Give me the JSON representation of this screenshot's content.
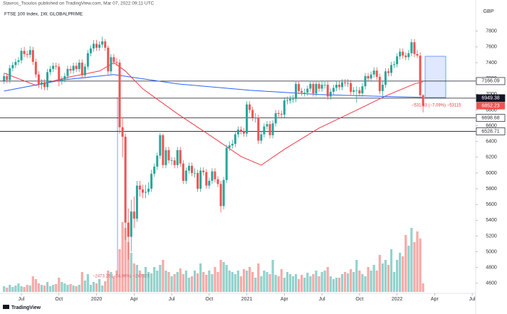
{
  "chart_data": {
    "type": "candlestick",
    "header": "Stavros_Tsoulos published on TradingView.com, Mar 07, 2022 09:11 UTC",
    "title": "FTSE 100 Index, 1W, GLOBALPRIME",
    "currency": "GBP",
    "logo": "TradingView",
    "up_color": "#26a69a",
    "down_color": "#ef5350",
    "open": [
      7170,
      7230,
      7180,
      7330,
      7370,
      7410,
      7430,
      7550,
      7510,
      7500,
      7560,
      7410,
      7250,
      7120,
      7150,
      7090,
      7280,
      7320,
      7360,
      7350,
      7160,
      7190,
      7230,
      7320,
      7300,
      7360,
      7320,
      7400,
      7240,
      7350,
      7520,
      7580,
      7640,
      7590,
      7630,
      7670,
      7590,
      7290,
      7470,
      7410,
      7400,
      6580,
      6460,
      5370,
      5190,
      5510,
      5420,
      5840,
      5790,
      5750,
      5760,
      5800,
      5990,
      6080,
      6220,
      6480,
      6100,
      6290,
      6160,
      6160,
      6100,
      6290,
      6120,
      5900,
      6030,
      6090,
      6000,
      6000,
      5800,
      6030,
      6010,
      5840,
      5900,
      6020,
      5920,
      5860,
      5580,
      5910,
      6320,
      6350,
      6370,
      6490,
      6550,
      6530,
      6500,
      6870,
      6800,
      6700,
      6700,
      6410,
      6490,
      6590,
      6620,
      6480,
      6630,
      6760,
      6750,
      6740,
      6920,
      6920,
      6940,
      6940,
      7130,
      7040,
      7020,
      7020,
      7070,
      7130,
      7010,
      7130,
      7070,
      7120,
      7120,
      6970,
      7030,
      7080,
      7120,
      7090,
      7150,
      7140,
      7140,
      7030,
      7050,
      7050,
      7010,
      7100,
      7230,
      7200,
      7250,
      7300,
      7220,
      7040,
      7120,
      7290,
      7270,
      7370,
      7380,
      7480,
      7540,
      7490,
      7470,
      7520,
      7660,
      7510,
      7490,
      6987
    ],
    "high": [
      7270,
      7270,
      7370,
      7410,
      7450,
      7470,
      7590,
      7600,
      7550,
      7610,
      7600,
      7450,
      7290,
      7190,
      7190,
      7320,
      7360,
      7400,
      7400,
      7390,
      7230,
      7270,
      7360,
      7360,
      7400,
      7400,
      7440,
      7440,
      7390,
      7560,
      7620,
      7690,
      7690,
      7670,
      7730,
      7700,
      7620,
      7510,
      7510,
      7460,
      7440,
      6700,
      6500,
      5550,
      5660,
      5700,
      5900,
      5900,
      5850,
      5850,
      5880,
      6040,
      6120,
      6260,
      6510,
      6500,
      6330,
      6330,
      6200,
      6200,
      6330,
      6330,
      6160,
      6070,
      6130,
      6130,
      6060,
      6040,
      6070,
      6070,
      6050,
      5940,
      6060,
      6060,
      5960,
      5900,
      5950,
      6360,
      6400,
      6420,
      6530,
      6590,
      6590,
      6570,
      6910,
      6910,
      6840,
      6760,
      6740,
      6530,
      6630,
      6660,
      6660,
      6670,
      6800,
      6800,
      6790,
      6960,
      6970,
      6980,
      6990,
      7170,
      7170,
      7080,
      7070,
      7110,
      7170,
      7170,
      7170,
      7170,
      7160,
      7170,
      7160,
      7070,
      7120,
      7160,
      7160,
      7190,
      7190,
      7190,
      7180,
      7090,
      7100,
      7090,
      7140,
      7270,
      7270,
      7290,
      7340,
      7340,
      7260,
      7160,
      7330,
      7330,
      7410,
      7420,
      7520,
      7580,
      7580,
      7530,
      7560,
      7700,
      7700,
      7560,
      7530,
      7000
    ],
    "low": [
      7130,
      7140,
      7140,
      7290,
      7330,
      7370,
      7390,
      7470,
      7460,
      7460,
      7370,
      7210,
      7080,
      7060,
      7050,
      7050,
      7240,
      7280,
      7310,
      7100,
      7120,
      7150,
      7190,
      7260,
      7260,
      7280,
      7280,
      7200,
      7200,
      7310,
      7480,
      7540,
      7550,
      7550,
      7590,
      7550,
      7250,
      7250,
      7370,
      7360,
      6500,
      6200,
      5150,
      4900,
      5000,
      5300,
      5380,
      5700,
      5680,
      5680,
      5720,
      5760,
      5950,
      6040,
      6180,
      6060,
      6060,
      6120,
      6100,
      6060,
      6060,
      6080,
      5860,
      5860,
      5990,
      5960,
      5940,
      5760,
      5760,
      5970,
      5800,
      5800,
      5860,
      5880,
      5820,
      5500,
      5540,
      5870,
      6280,
      6310,
      6330,
      6450,
      6490,
      6460,
      6460,
      6760,
      6660,
      6640,
      6370,
      6370,
      6450,
      6550,
      6440,
      6440,
      6590,
      6710,
      6700,
      6700,
      6870,
      6880,
      6890,
      6900,
      7000,
      6980,
      6970,
      6980,
      7030,
      6970,
      6970,
      7030,
      7030,
      7070,
      6930,
      6930,
      6990,
      7040,
      7050,
      7050,
      7100,
      7090,
      6990,
      6990,
      6890,
      6970,
      6970,
      7060,
      7160,
      7160,
      7210,
      7180,
      7000,
      6980,
      7080,
      7230,
      7230,
      7330,
      7340,
      7440,
      7450,
      7430,
      7430,
      7480,
      7470,
      7460,
      6960,
      6770
    ],
    "close": [
      7230,
      7180,
      7330,
      7370,
      7410,
      7430,
      7550,
      7510,
      7500,
      7560,
      7410,
      7250,
      7120,
      7150,
      7090,
      7280,
      7320,
      7360,
      7350,
      7160,
      7190,
      7230,
      7320,
      7300,
      7360,
      7320,
      7400,
      7240,
      7350,
      7520,
      7580,
      7640,
      7590,
      7630,
      7670,
      7590,
      7290,
      7470,
      7410,
      7400,
      6580,
      6460,
      5370,
      5190,
      5510,
      5420,
      5840,
      5790,
      5750,
      5760,
      5800,
      5990,
      6080,
      6220,
      6480,
      6100,
      6290,
      6160,
      6160,
      6100,
      6290,
      6120,
      5900,
      6030,
      6090,
      6000,
      6000,
      5800,
      6030,
      6010,
      5840,
      5900,
      6020,
      5920,
      5860,
      5580,
      5910,
      6320,
      6350,
      6370,
      6490,
      6550,
      6530,
      6500,
      6870,
      6800,
      6700,
      6700,
      6410,
      6490,
      6590,
      6620,
      6480,
      6630,
      6760,
      6750,
      6740,
      6920,
      6920,
      6940,
      6940,
      7130,
      7040,
      7020,
      7020,
      7070,
      7130,
      7010,
      7130,
      7070,
      7120,
      7120,
      6970,
      7030,
      7080,
      7120,
      7090,
      7150,
      7140,
      7140,
      7030,
      7050,
      7050,
      7010,
      7100,
      7230,
      7200,
      7250,
      7300,
      7220,
      7040,
      7120,
      7290,
      7270,
      7370,
      7380,
      7480,
      7540,
      7490,
      7470,
      7520,
      7660,
      7510,
      7490,
      6987,
      6852.23
    ],
    "volume": [
      8,
      6,
      10,
      7,
      9,
      12,
      8,
      7,
      10,
      9,
      22,
      18,
      12,
      10,
      9,
      14,
      8,
      10,
      11,
      20,
      14,
      12,
      10,
      11,
      9,
      8,
      10,
      28,
      16,
      25,
      10,
      14,
      12,
      18,
      9,
      15,
      30,
      28,
      22,
      30,
      60,
      98,
      90,
      70,
      55,
      40,
      38,
      30,
      25,
      35,
      28,
      26,
      35,
      30,
      38,
      45,
      30,
      28,
      22,
      25,
      28,
      33,
      25,
      30,
      20,
      22,
      30,
      26,
      40,
      28,
      24,
      30,
      25,
      35,
      28,
      45,
      42,
      38,
      30,
      28,
      25,
      30,
      22,
      32,
      30,
      35,
      28,
      20,
      40,
      22,
      30,
      28,
      25,
      45,
      24,
      22,
      32,
      20,
      28,
      25,
      22,
      25,
      18,
      24,
      20,
      27,
      22,
      25,
      30,
      22,
      28,
      30,
      35,
      22,
      18,
      20,
      20,
      25,
      28,
      26,
      32,
      28,
      45,
      30,
      25,
      22,
      35,
      30,
      38,
      30,
      52,
      40,
      45,
      38,
      60,
      28,
      45,
      55,
      50,
      80,
      65,
      90,
      70,
      85,
      75,
      12
    ],
    "moving_averages": [
      {
        "color": "#f23645",
        "x": [
          0,
          11,
          23,
          33,
          38,
          42,
          48,
          60,
          73,
          82,
          89,
          97,
          109,
          122,
          132,
          142,
          145
        ],
        "values": [
          7267,
          7113,
          7221,
          7294,
          7400,
          7294,
          7068,
          6751,
          6435,
          6209,
          6100,
          6300,
          6570,
          6797,
          6977,
          7131,
          7158
        ]
      },
      {
        "color": "#2962ff",
        "x": [
          0,
          20,
          38,
          60,
          85,
          109,
          134,
          145
        ],
        "values": [
          7040,
          7180,
          7249,
          7131,
          7050,
          6996,
          6968,
          6959
        ]
      }
    ],
    "levels": [
      7166.09,
      6949.38,
      6698.68,
      6528.71
    ],
    "annotations": [
      "−531.83 (−7.09%) −53115",
      "−2473.25 (−34.96%) −247325"
    ],
    "xlim": [
      -1.4,
      163.2
    ],
    "ylim": [
      4490,
      8060
    ],
    "yticks": [
      4600,
      4800,
      5000,
      5200,
      5400,
      5600,
      5800,
      6000,
      6200,
      6400,
      6600,
      6800,
      7000,
      7200,
      7400,
      7600,
      7800
    ],
    "xticks": [
      {
        "value": 6,
        "label": "Jul"
      },
      {
        "value": 19,
        "label": "Oct"
      },
      {
        "value": 32,
        "label": "2020"
      },
      {
        "value": 45,
        "label": "Apr"
      },
      {
        "value": 58,
        "label": "Jul"
      },
      {
        "value": 71,
        "label": "Oct"
      },
      {
        "value": 84,
        "label": "2021"
      },
      {
        "value": 97,
        "label": "Apr"
      },
      {
        "value": 110,
        "label": "Jul"
      },
      {
        "value": 123,
        "label": "Oct"
      },
      {
        "value": 136,
        "label": "2022"
      },
      {
        "value": 149,
        "label": "Apr"
      },
      {
        "value": 162,
        "label": "Jul"
      }
    ]
  }
}
